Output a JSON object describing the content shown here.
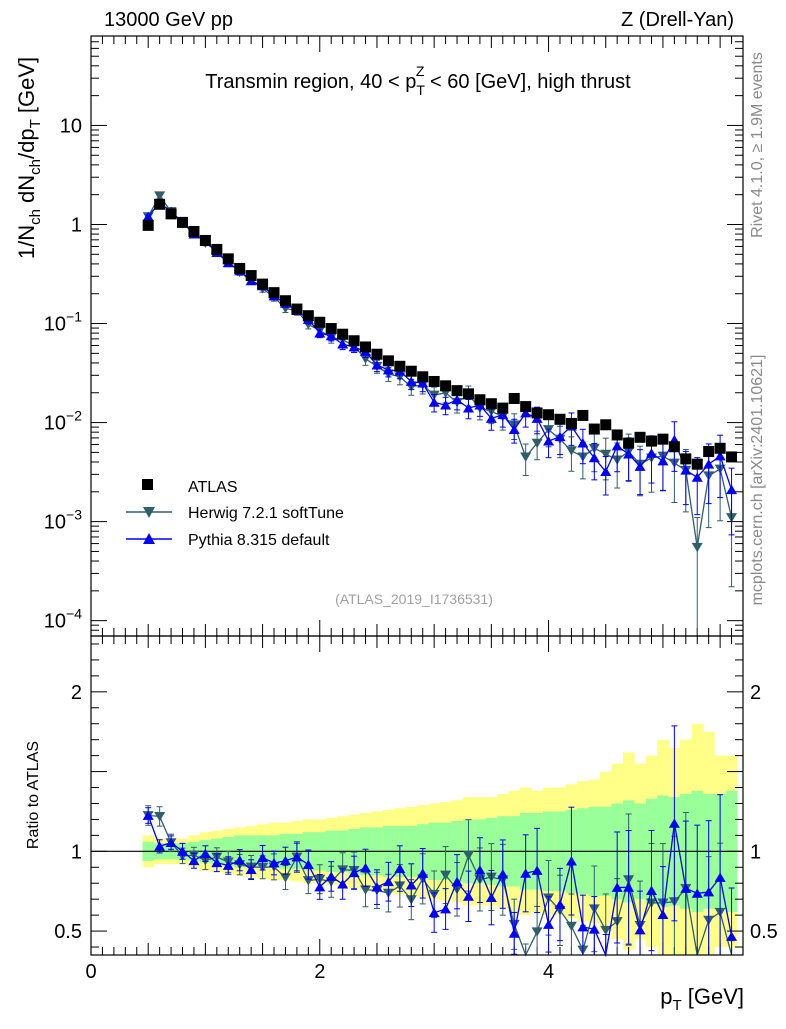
{
  "chart_data": {
    "type": "scatter",
    "header_left": "13000 GeV pp",
    "header_right": "Z (Drell-Yan)",
    "title": {
      "prefix": "Transmin region, 40 < p",
      "sub": "T",
      "sup": "Z",
      "suffix": " < 60 [GeV], high thrust"
    },
    "ylabel": {
      "p1": "1/N",
      "s1": "ch",
      "p2": " dN",
      "s2": "ch",
      "p3": "/dp",
      "s3": "T",
      "p4": " [GeV]"
    },
    "xlabel": {
      "main": "p",
      "sub": "T",
      "unit": " [GeV]"
    },
    "ratio_ylabel": "Ratio to ATLAS",
    "side_label_top": "Rivet 4.1.0, ≥ 1.9M events",
    "side_label_bottom": "mcplots.cern.ch [arXiv:2401.10621]",
    "watermark": "(ATLAS_2019_I1736531)",
    "x_range": [
      0,
      5.7
    ],
    "y_range_log": [
      7e-05,
      80
    ],
    "ratio_range": [
      0.35,
      2.35
    ],
    "x_ticks": [
      {
        "v": 0,
        "label": "0"
      },
      {
        "v": 2,
        "label": "2"
      },
      {
        "v": 4,
        "label": "4"
      }
    ],
    "y_ticks": [
      {
        "v": 10,
        "base": "10",
        "exp": ""
      },
      {
        "v": 1,
        "base": "1",
        "exp": ""
      },
      {
        "v": 0.1,
        "base": "10",
        "exp": "−1"
      },
      {
        "v": 0.01,
        "base": "10",
        "exp": "−2"
      },
      {
        "v": 0.001,
        "base": "10",
        "exp": "−3"
      },
      {
        "v": 0.0001,
        "base": "10",
        "exp": "−4"
      }
    ],
    "ratio_ticks": [
      {
        "v": 2,
        "label": "2"
      },
      {
        "v": 1,
        "label": "1"
      },
      {
        "v": 0.5,
        "label": "0.5"
      }
    ],
    "legend": [
      {
        "name": "ATLAS",
        "color": "#000000",
        "marker": "square"
      },
      {
        "name": "Herwig 7.2.1 softTune",
        "color": "#2e5f6b",
        "marker": "triangle-down"
      },
      {
        "name": "Pythia 8.315 default",
        "color": "#0000ff",
        "marker": "triangle-up"
      }
    ],
    "x": [
      0.5,
      0.6,
      0.7,
      0.8,
      0.9,
      1.0,
      1.1,
      1.2,
      1.3,
      1.4,
      1.5,
      1.6,
      1.7,
      1.8,
      1.9,
      2.0,
      2.1,
      2.2,
      2.3,
      2.4,
      2.5,
      2.6,
      2.7,
      2.8,
      2.9,
      3.0,
      3.1,
      3.2,
      3.3,
      3.4,
      3.5,
      3.6,
      3.7,
      3.8,
      3.9,
      4.0,
      4.1,
      4.2,
      4.3,
      4.4,
      4.5,
      4.6,
      4.7,
      4.8,
      4.9,
      5.0,
      5.1,
      5.2,
      5.3,
      5.4,
      5.5,
      5.6
    ],
    "atlas": [
      0.98,
      1.6,
      1.28,
      1.05,
      0.85,
      0.69,
      0.56,
      0.45,
      0.36,
      0.305,
      0.25,
      0.205,
      0.17,
      0.14,
      0.12,
      0.103,
      0.089,
      0.078,
      0.067,
      0.058,
      0.049,
      0.042,
      0.037,
      0.033,
      0.029,
      0.026,
      0.0235,
      0.021,
      0.0195,
      0.017,
      0.0155,
      0.014,
      0.0175,
      0.0145,
      0.0125,
      0.012,
      0.0108,
      0.0098,
      0.0118,
      0.0086,
      0.0095,
      0.0075,
      0.0062,
      0.0071,
      0.0065,
      0.0068,
      0.0057,
      0.0043,
      0.0038,
      0.0051,
      0.0055,
      0.0045
    ],
    "herwig": [
      1.2,
      1.95,
      1.35,
      1.02,
      0.83,
      0.65,
      0.54,
      0.42,
      0.33,
      0.275,
      0.225,
      0.185,
      0.142,
      0.135,
      0.098,
      0.085,
      0.072,
      0.069,
      0.059,
      0.044,
      0.037,
      0.031,
      0.029,
      0.023,
      0.024,
      0.019,
      0.02,
      0.016,
      0.019,
      0.014,
      0.013,
      0.0115,
      0.0095,
      0.0045,
      0.0062,
      0.0085,
      0.0068,
      0.0052,
      0.0045,
      0.0055,
      0.0048,
      0.0042,
      0.0051,
      0.0038,
      0.0044,
      0.0046,
      0.0039,
      0.0033,
      0.00055,
      0.0029,
      0.0034,
      0.0011
    ],
    "pythia": [
      1.2,
      1.65,
      1.35,
      1.05,
      0.8,
      0.68,
      0.52,
      0.41,
      0.34,
      0.27,
      0.24,
      0.19,
      0.16,
      0.135,
      0.11,
      0.08,
      0.075,
      0.062,
      0.058,
      0.052,
      0.038,
      0.034,
      0.033,
      0.026,
      0.025,
      0.016,
      0.015,
      0.017,
      0.014,
      0.015,
      0.011,
      0.012,
      0.0085,
      0.0125,
      0.011,
      0.0065,
      0.0072,
      0.0092,
      0.0062,
      0.0044,
      0.0032,
      0.0058,
      0.0048,
      0.0036,
      0.0049,
      0.0041,
      0.0067,
      0.0033,
      0.0028,
      0.0038,
      0.0046,
      0.0021
    ],
    "rel_err_herwig": [
      0.05,
      0.05,
      0.05,
      0.05,
      0.05,
      0.06,
      0.06,
      0.07,
      0.07,
      0.08,
      0.08,
      0.09,
      0.09,
      0.1,
      0.1,
      0.11,
      0.12,
      0.12,
      0.13,
      0.14,
      0.15,
      0.16,
      0.17,
      0.18,
      0.19,
      0.2,
      0.21,
      0.22,
      0.23,
      0.24,
      0.25,
      0.27,
      0.29,
      0.35,
      0.32,
      0.33,
      0.35,
      0.38,
      0.4,
      0.42,
      0.45,
      0.48,
      0.5,
      0.52,
      0.55,
      0.55,
      0.6,
      0.62,
      1.0,
      0.7,
      0.7,
      0.8
    ],
    "rel_err_pythia": [
      0.04,
      0.04,
      0.04,
      0.05,
      0.05,
      0.05,
      0.06,
      0.06,
      0.07,
      0.07,
      0.08,
      0.08,
      0.09,
      0.09,
      0.1,
      0.1,
      0.11,
      0.12,
      0.12,
      0.13,
      0.14,
      0.15,
      0.16,
      0.17,
      0.18,
      0.2,
      0.2,
      0.21,
      0.22,
      0.23,
      0.24,
      0.25,
      0.27,
      0.28,
      0.3,
      0.32,
      0.34,
      0.36,
      0.38,
      0.4,
      0.42,
      0.45,
      0.46,
      0.48,
      0.5,
      0.5,
      0.52,
      0.55,
      0.58,
      0.6,
      0.62,
      0.65
    ],
    "band_stat_half": [
      0.06,
      0.05,
      0.05,
      0.05,
      0.06,
      0.07,
      0.08,
      0.09,
      0.1,
      0.1,
      0.1,
      0.1,
      0.11,
      0.11,
      0.12,
      0.12,
      0.13,
      0.13,
      0.14,
      0.15,
      0.15,
      0.16,
      0.16,
      0.16,
      0.17,
      0.18,
      0.18,
      0.19,
      0.2,
      0.2,
      0.21,
      0.22,
      0.22,
      0.24,
      0.24,
      0.25,
      0.25,
      0.26,
      0.27,
      0.28,
      0.28,
      0.3,
      0.32,
      0.3,
      0.33,
      0.35,
      0.34,
      0.36,
      0.38,
      0.36,
      0.36,
      0.38
    ],
    "band_total_half": [
      0.1,
      0.08,
      0.08,
      0.08,
      0.1,
      0.12,
      0.13,
      0.14,
      0.15,
      0.16,
      0.17,
      0.18,
      0.18,
      0.19,
      0.2,
      0.2,
      0.21,
      0.22,
      0.23,
      0.24,
      0.25,
      0.26,
      0.27,
      0.28,
      0.29,
      0.3,
      0.31,
      0.32,
      0.34,
      0.34,
      0.34,
      0.36,
      0.38,
      0.4,
      0.38,
      0.4,
      0.4,
      0.42,
      0.44,
      0.45,
      0.5,
      0.55,
      0.62,
      0.55,
      0.6,
      0.7,
      0.65,
      0.7,
      0.8,
      0.75,
      0.6,
      0.6
    ]
  }
}
